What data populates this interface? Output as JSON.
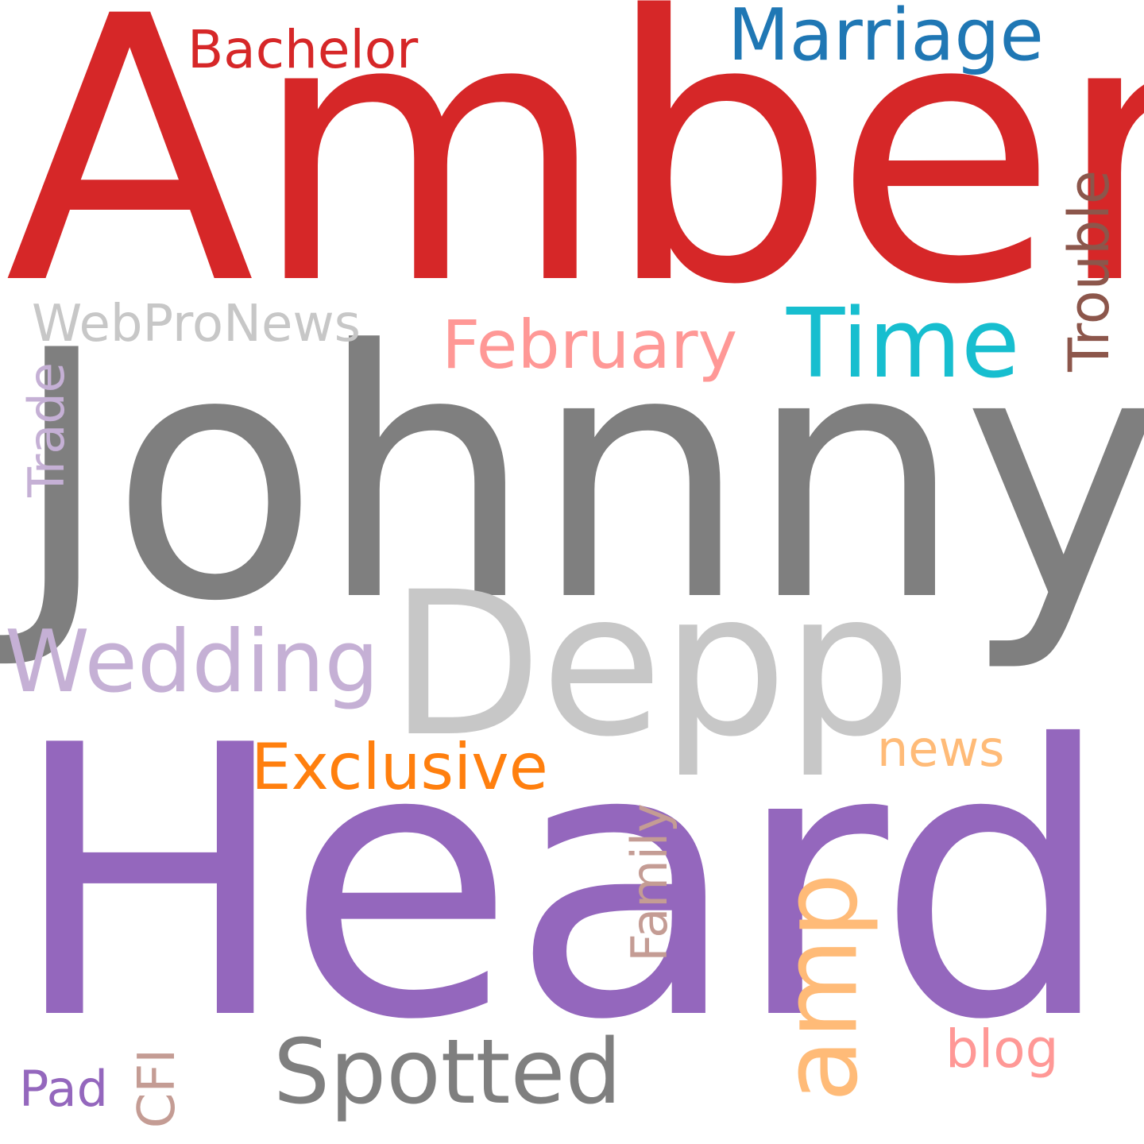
{
  "word_cloud": {
    "words": [
      {
        "key": "amber",
        "text": "Amber",
        "color": "#d62728",
        "orientation": "horizontal"
      },
      {
        "key": "johnny",
        "text": "Johnny",
        "color": "#7f7f7f",
        "orientation": "horizontal"
      },
      {
        "key": "heard",
        "text": "Heard",
        "color": "#9467bd",
        "orientation": "horizontal"
      },
      {
        "key": "depp",
        "text": "Depp",
        "color": "#c7c7c7",
        "orientation": "horizontal"
      },
      {
        "key": "wedding",
        "text": "Wedding",
        "color": "#c5b0d5",
        "orientation": "horizontal"
      },
      {
        "key": "marriage",
        "text": "Marriage",
        "color": "#1f77b4",
        "orientation": "horizontal"
      },
      {
        "key": "bachelor",
        "text": "Bachelor",
        "color": "#d62728",
        "orientation": "horizontal"
      },
      {
        "key": "time",
        "text": "Time",
        "color": "#17becf",
        "orientation": "horizontal"
      },
      {
        "key": "february",
        "text": "February",
        "color": "#ff9896",
        "orientation": "horizontal"
      },
      {
        "key": "webpronews",
        "text": "WebProNews",
        "color": "#c7c7c7",
        "orientation": "horizontal"
      },
      {
        "key": "exclusive",
        "text": "Exclusive",
        "color": "#ff7f0e",
        "orientation": "horizontal"
      },
      {
        "key": "spotted",
        "text": "Spotted",
        "color": "#7f7f7f",
        "orientation": "horizontal"
      },
      {
        "key": "news",
        "text": "news",
        "color": "#ffbb78",
        "orientation": "horizontal"
      },
      {
        "key": "blog",
        "text": "blog",
        "color": "#ff9896",
        "orientation": "horizontal"
      },
      {
        "key": "pad",
        "text": "Pad",
        "color": "#9467bd",
        "orientation": "horizontal"
      },
      {
        "key": "trouble",
        "text": "Trouble",
        "color": "#8c564b",
        "orientation": "vertical"
      },
      {
        "key": "trade",
        "text": "Trade",
        "color": "#c5b0d5",
        "orientation": "vertical"
      },
      {
        "key": "family",
        "text": "Family",
        "color": "#c49c94",
        "orientation": "vertical"
      },
      {
        "key": "amp",
        "text": "amp",
        "color": "#ffbb78",
        "orientation": "vertical"
      },
      {
        "key": "cfi",
        "text": "CFI",
        "color": "#c49c94",
        "orientation": "vertical"
      }
    ]
  }
}
